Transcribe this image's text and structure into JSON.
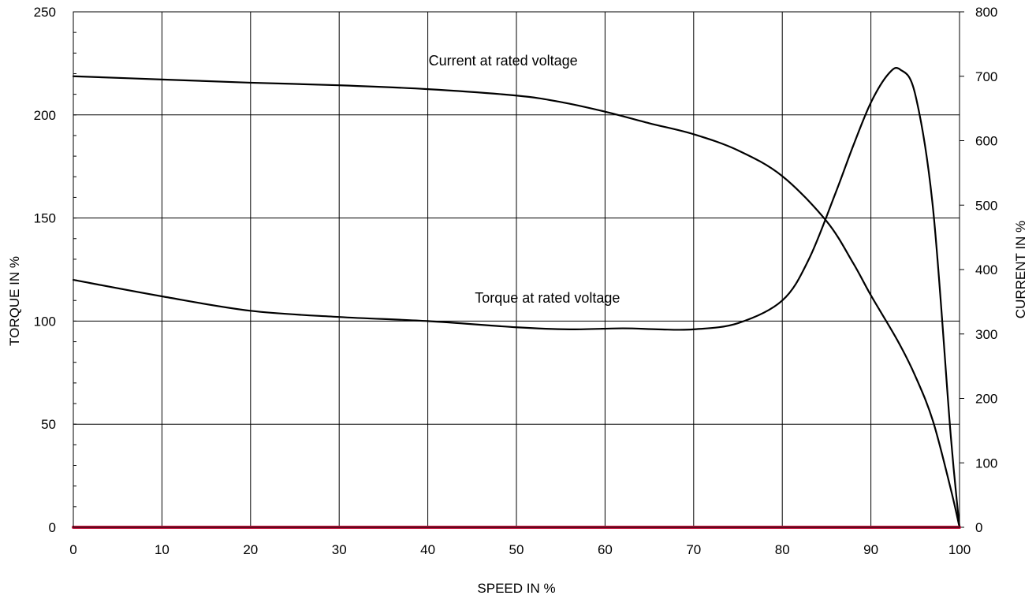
{
  "chart_data": {
    "type": "line",
    "xlabel": "SPEED IN %",
    "ylabel_left": "TORQUE IN %",
    "ylabel_right": "CURRENT IN %",
    "xlim": [
      0,
      100
    ],
    "ylim_left": [
      0,
      250
    ],
    "ylim_right": [
      0,
      800
    ],
    "x_ticks": [
      "0",
      "10",
      "20",
      "30",
      "40",
      "50",
      "60",
      "70",
      "80",
      "90",
      "100"
    ],
    "y_ticks_left": [
      "0",
      "50",
      "100",
      "150",
      "200",
      "250"
    ],
    "y_ticks_right": [
      "0",
      "100",
      "200",
      "300",
      "400",
      "500",
      "600",
      "700",
      "800"
    ],
    "grid": true,
    "colors": {
      "line": "#000000",
      "baseline": "#c0143c",
      "grid": "#000000"
    },
    "annotations": [
      {
        "text": "Current at rated voltage",
        "x": 48.5,
        "y_axis": "left",
        "y": 224
      },
      {
        "text": "Torque at rated voltage",
        "x": 53.5,
        "y_axis": "left",
        "y": 109
      }
    ],
    "series": [
      {
        "axis": "right",
        "x": [
          0,
          10,
          20,
          30,
          40,
          50,
          55,
          60,
          65,
          70,
          75,
          80,
          85,
          88,
          90,
          93,
          95,
          97,
          99,
          100
        ],
        "values": [
          700,
          695,
          690,
          686,
          680,
          670,
          660,
          645,
          627,
          610,
          585,
          545,
          475,
          410,
          360,
          290,
          235,
          165,
          60,
          0
        ]
      },
      {
        "axis": "left",
        "x": [
          0,
          10,
          20,
          30,
          40,
          50,
          56,
          62,
          66,
          70,
          75,
          80,
          83,
          86,
          88,
          90,
          92,
          93.3,
          95,
          97,
          99,
          100
        ],
        "values": [
          120,
          112,
          105,
          102,
          100,
          97,
          96,
          96.5,
          96,
          96,
          99,
          110,
          130,
          162,
          185,
          206,
          220,
          222,
          210,
          155,
          45,
          0
        ]
      },
      {
        "axis": "left",
        "x": [
          0,
          100
        ],
        "values": [
          0,
          0
        ]
      }
    ]
  }
}
